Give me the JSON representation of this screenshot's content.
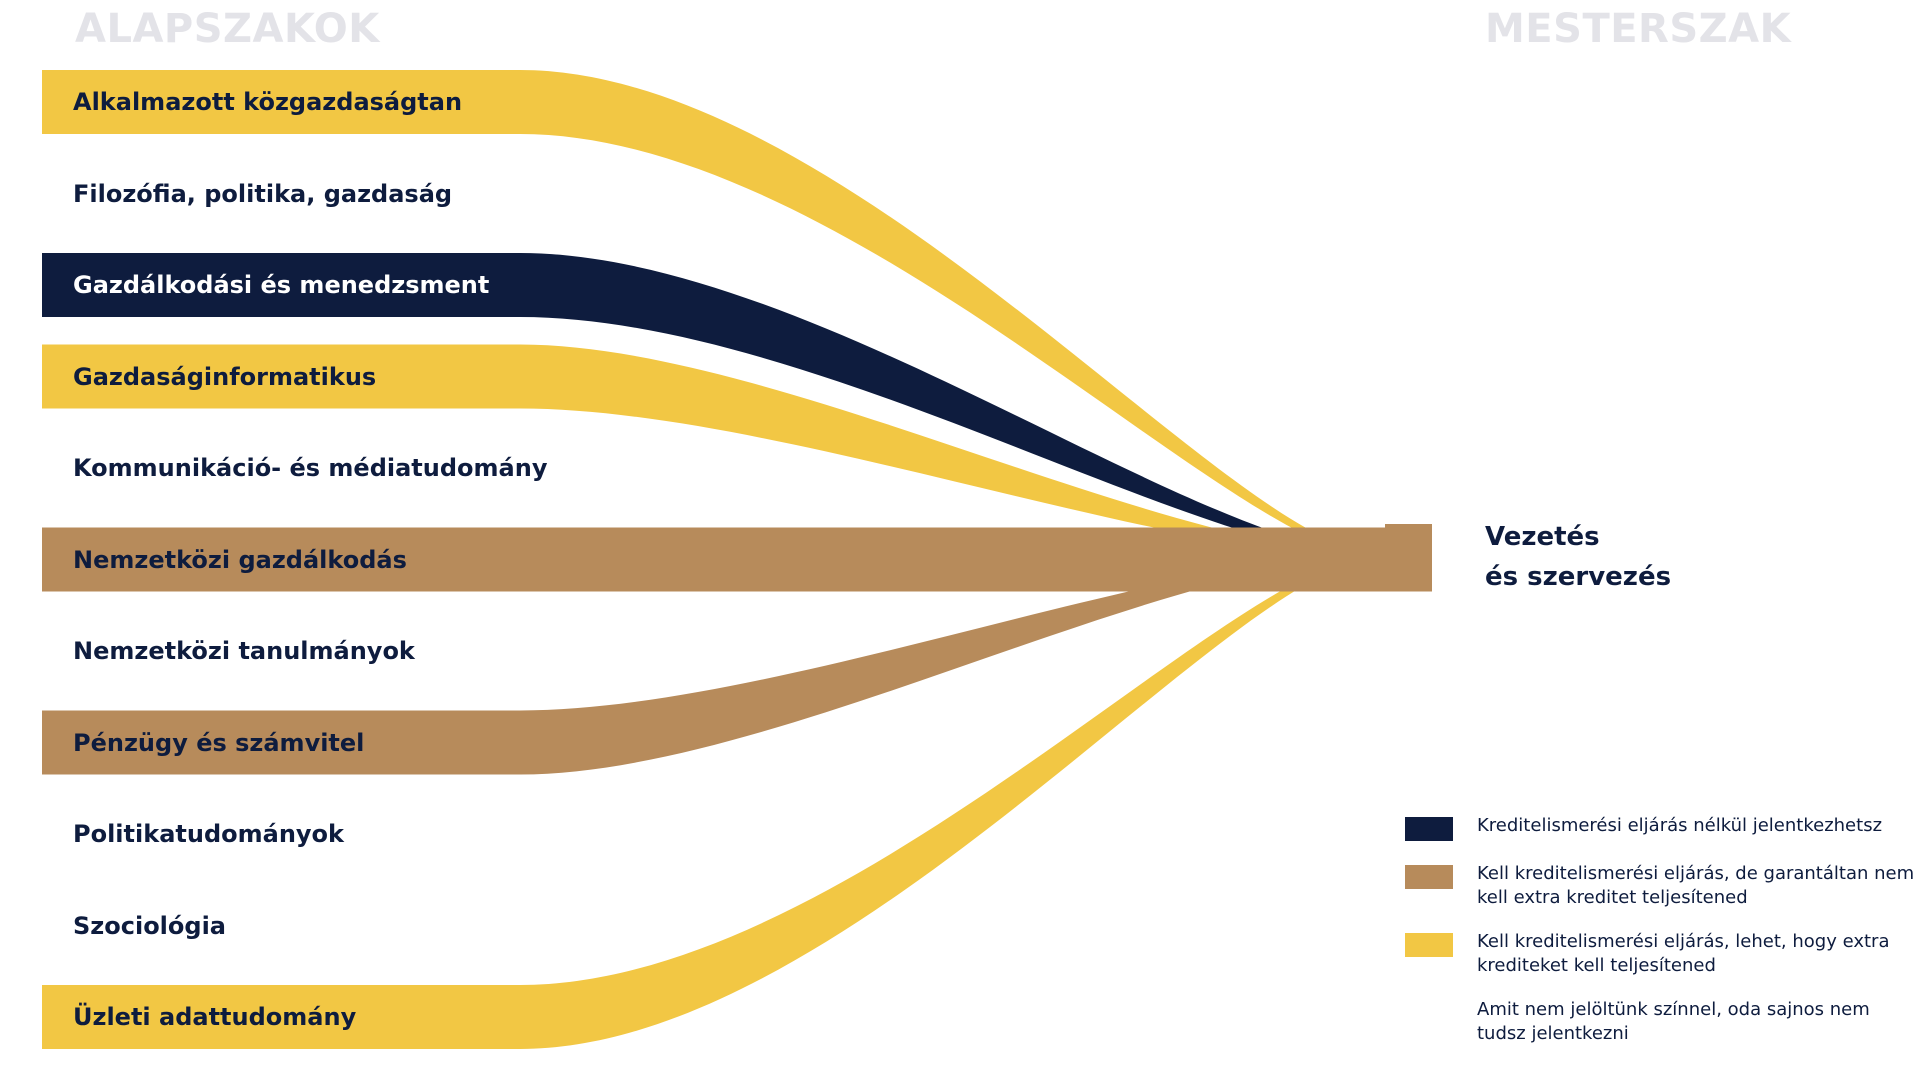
{
  "headers": {
    "left": "ALAPSZAKOK",
    "right": "MESTERSZAK"
  },
  "colors": {
    "navy": "#0e1c3e",
    "tan": "#b78b5b",
    "yellow": "#f2c744",
    "header": "#e3e3e8",
    "white": "#ffffff"
  },
  "target": {
    "line1": "Vezetés",
    "line2": "és szervezés"
  },
  "sources": [
    {
      "label": "Alkalmazott közgazdaságtan",
      "status": "yellow"
    },
    {
      "label": "Filozófia, politika, gazdaság",
      "status": "none"
    },
    {
      "label": "Gazdálkodási és menedzsment",
      "status": "navy"
    },
    {
      "label": "Gazdaságinformatikus",
      "status": "yellow"
    },
    {
      "label": "Kommunikáció- és médiatudomány",
      "status": "none"
    },
    {
      "label": "Nemzetközi gazdálkodás",
      "status": "tan"
    },
    {
      "label": "Nemzetközi tanulmányok",
      "status": "none"
    },
    {
      "label": "Pénzügy és számvitel",
      "status": "tan"
    },
    {
      "label": "Politikatudományok",
      "status": "none"
    },
    {
      "label": "Szociológia",
      "status": "none"
    },
    {
      "label": "Üzleti adattudomány",
      "status": "yellow"
    }
  ],
  "legend": [
    {
      "status": "navy",
      "text": "Kreditelismerési eljárás nélkül jelentkezhetsz"
    },
    {
      "status": "tan",
      "text": "Kell kreditelismerési eljárás, de garantáltan nem kell extra kreditet teljesítened"
    },
    {
      "status": "yellow",
      "text": "Kell kreditelismerési eljárás, lehet, hogy extra krediteket kell teljesítened"
    },
    {
      "status": "none",
      "text": "Amit nem jelöltünk színnel, oda sajnos nem tudsz jelentkezni"
    }
  ]
}
